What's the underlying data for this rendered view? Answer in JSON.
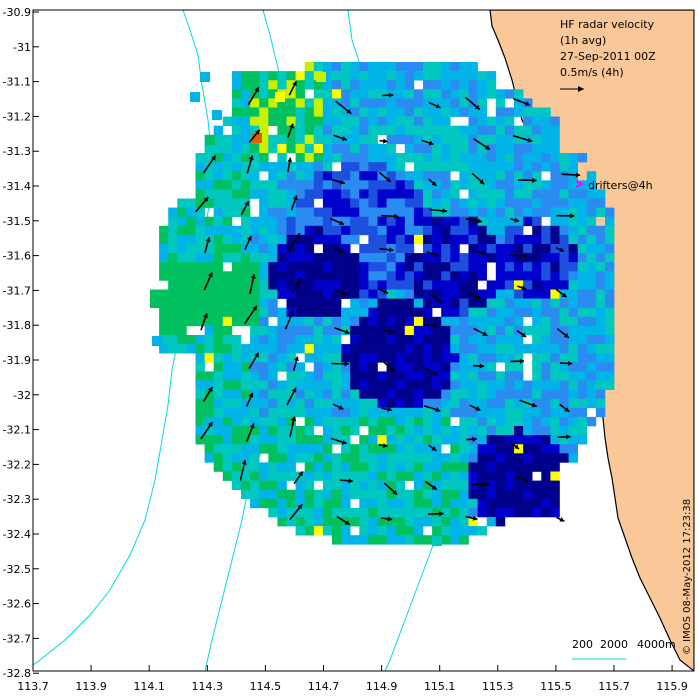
{
  "map": {
    "title_lines": [
      "HF radar velocity",
      "(1h avg)",
      "27-Sep-2011 00Z",
      "0.5m/s (4h)"
    ],
    "drifters_label": "drifters@4h",
    "credit": "© IMOS 08-May-2012 17:23:38",
    "contour_labels": [
      "200",
      "2000",
      "4000m"
    ],
    "x_ticks": [
      "113.7",
      "113.9",
      "114.1",
      "114.3",
      "114.5",
      "114.7",
      "114.9",
      "115.1",
      "115.3",
      "115.5",
      "115.7",
      "115.9"
    ],
    "y_ticks": [
      "-30.9",
      "-31",
      "-31.1",
      "-31.2",
      "-31.3",
      "-31.4",
      "-31.5",
      "-31.6",
      "-31.7",
      "-31.8",
      "-31.9",
      "-32",
      "-32.1",
      "-32.2",
      "-32.3",
      "-32.4",
      "-32.5",
      "-32.6",
      "-32.7",
      "-32.8"
    ],
    "colors": {
      "land": "#FAC898",
      "contour": "#00D8E8",
      "drifter_marker": "#FF00FF",
      "speed_scale": [
        "#00008B",
        "#0000CD",
        "#1E50E0",
        "#2A8CF0",
        "#00B4E8",
        "#00C8C0",
        "#00C060",
        "#C8F000",
        "#FFFF00",
        "#E06000"
      ]
    }
  }
}
